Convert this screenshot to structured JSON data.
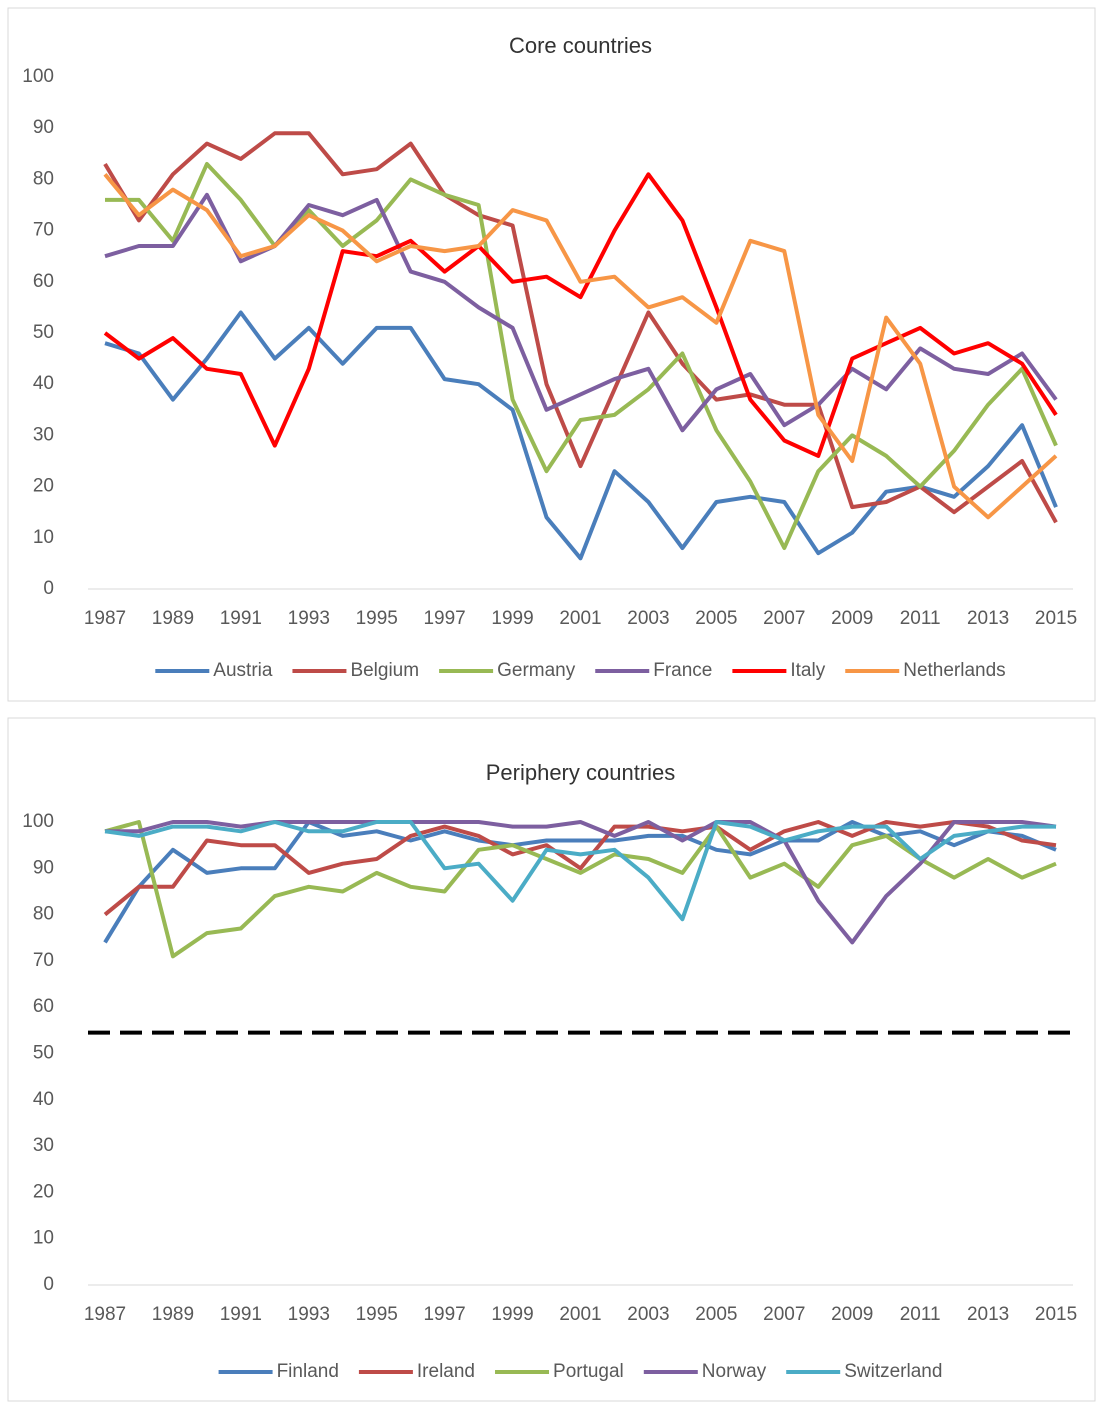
{
  "chart_data": [
    {
      "type": "line",
      "title": "Core countries",
      "x": [
        1987,
        1988,
        1989,
        1990,
        1991,
        1992,
        1993,
        1994,
        1995,
        1996,
        1997,
        1998,
        1999,
        2000,
        2001,
        2002,
        2003,
        2004,
        2005,
        2006,
        2007,
        2008,
        2009,
        2010,
        2011,
        2012,
        2013,
        2014,
        2015
      ],
      "xlim": [
        1986.5,
        2015.5
      ],
      "xticks": [
        1987,
        1989,
        1991,
        1993,
        1995,
        1997,
        1999,
        2001,
        2003,
        2005,
        2007,
        2009,
        2011,
        2013,
        2015
      ],
      "ylim": [
        0,
        100
      ],
      "yticks": [
        0,
        10,
        20,
        30,
        40,
        50,
        60,
        70,
        80,
        90,
        100
      ],
      "legend": "bottom",
      "series": [
        {
          "name": "Austria",
          "color": "#4a7ebb",
          "values": [
            48,
            46,
            37,
            45,
            54,
            45,
            51,
            44,
            51,
            51,
            41,
            40,
            35,
            14,
            6,
            23,
            17,
            8,
            17,
            18,
            17,
            7,
            11,
            19,
            20,
            18,
            24,
            32,
            16
          ]
        },
        {
          "name": "Belgium",
          "color": "#be4b48",
          "values": [
            83,
            72,
            81,
            87,
            84,
            89,
            89,
            81,
            82,
            87,
            77,
            73,
            71,
            40,
            24,
            39,
            54,
            44,
            37,
            38,
            36,
            36,
            16,
            17,
            20,
            15,
            20,
            25,
            13
          ]
        },
        {
          "name": "Germany",
          "color": "#98b954",
          "values": [
            76,
            76,
            68,
            83,
            76,
            67,
            74,
            67,
            72,
            80,
            77,
            75,
            37,
            23,
            33,
            34,
            39,
            46,
            31,
            21,
            8,
            23,
            30,
            26,
            20,
            27,
            36,
            43,
            28
          ]
        },
        {
          "name": "France",
          "color": "#7d5fa0",
          "values": [
            65,
            67,
            67,
            77,
            64,
            67,
            75,
            73,
            76,
            62,
            60,
            55,
            51,
            35,
            38,
            41,
            43,
            31,
            39,
            42,
            32,
            36,
            43,
            39,
            47,
            43,
            42,
            46,
            37
          ]
        },
        {
          "name": "Italy",
          "color": "#ff0000",
          "values": [
            50,
            45,
            49,
            43,
            42,
            28,
            43,
            66,
            65,
            68,
            62,
            67,
            60,
            61,
            57,
            70,
            81,
            72,
            55,
            37,
            29,
            26,
            45,
            48,
            51,
            46,
            48,
            44,
            34
          ]
        },
        {
          "name": "Netherlands",
          "color": "#f79646",
          "values": [
            81,
            73,
            78,
            74,
            65,
            67,
            73,
            70,
            64,
            67,
            66,
            67,
            74,
            72,
            60,
            61,
            55,
            57,
            52,
            68,
            66,
            34,
            25,
            53,
            44,
            20,
            14,
            20,
            26
          ]
        }
      ]
    },
    {
      "type": "line",
      "title": "Periphery countries",
      "x": [
        1987,
        1988,
        1989,
        1990,
        1991,
        1992,
        1993,
        1994,
        1995,
        1996,
        1997,
        1998,
        1999,
        2000,
        2001,
        2002,
        2003,
        2004,
        2005,
        2006,
        2007,
        2008,
        2009,
        2010,
        2011,
        2012,
        2013,
        2014,
        2015
      ],
      "xlim": [
        1986.5,
        2015.5
      ],
      "xticks": [
        1987,
        1989,
        1991,
        1993,
        1995,
        1997,
        1999,
        2001,
        2003,
        2005,
        2007,
        2009,
        2011,
        2013,
        2015
      ],
      "ylim": [
        0,
        100
      ],
      "yticks": [
        0,
        10,
        20,
        30,
        40,
        50,
        60,
        70,
        80,
        90,
        100
      ],
      "legend": "bottom",
      "reference_line": 54.5,
      "series": [
        {
          "name": "Finland",
          "color": "#4a7ebb",
          "values": [
            74,
            86,
            94,
            89,
            90,
            90,
            100,
            97,
            98,
            96,
            98,
            96,
            95,
            96,
            96,
            96,
            97,
            97,
            94,
            93,
            96,
            96,
            100,
            97,
            98,
            95,
            98,
            97,
            94
          ]
        },
        {
          "name": "Ireland",
          "color": "#be4b48",
          "values": [
            80,
            86,
            86,
            96,
            95,
            95,
            89,
            91,
            92,
            97,
            99,
            97,
            93,
            95,
            90,
            99,
            99,
            98,
            99,
            94,
            98,
            100,
            97,
            100,
            99,
            100,
            99,
            96,
            95
          ]
        },
        {
          "name": "Portugal",
          "color": "#98b954",
          "values": [
            98,
            100,
            71,
            76,
            77,
            84,
            86,
            85,
            89,
            86,
            85,
            94,
            95,
            92,
            89,
            93,
            92,
            89,
            99,
            88,
            91,
            86,
            95,
            97,
            92,
            88,
            92,
            88,
            91
          ]
        },
        {
          "name": "Norway",
          "color": "#7d5fa0",
          "values": [
            98,
            98,
            100,
            100,
            99,
            100,
            100,
            100,
            100,
            100,
            100,
            100,
            99,
            99,
            100,
            97,
            100,
            96,
            100,
            100,
            96,
            83,
            74,
            84,
            91,
            100,
            100,
            100,
            99
          ]
        },
        {
          "name": "Switzerland",
          "color": "#4bacc6",
          "values": [
            98,
            97,
            99,
            99,
            98,
            100,
            98,
            98,
            100,
            100,
            90,
            91,
            83,
            94,
            93,
            94,
            88,
            79,
            100,
            99,
            96,
            98,
            99,
            99,
            92,
            97,
            98,
            99,
            99
          ]
        }
      ]
    }
  ]
}
